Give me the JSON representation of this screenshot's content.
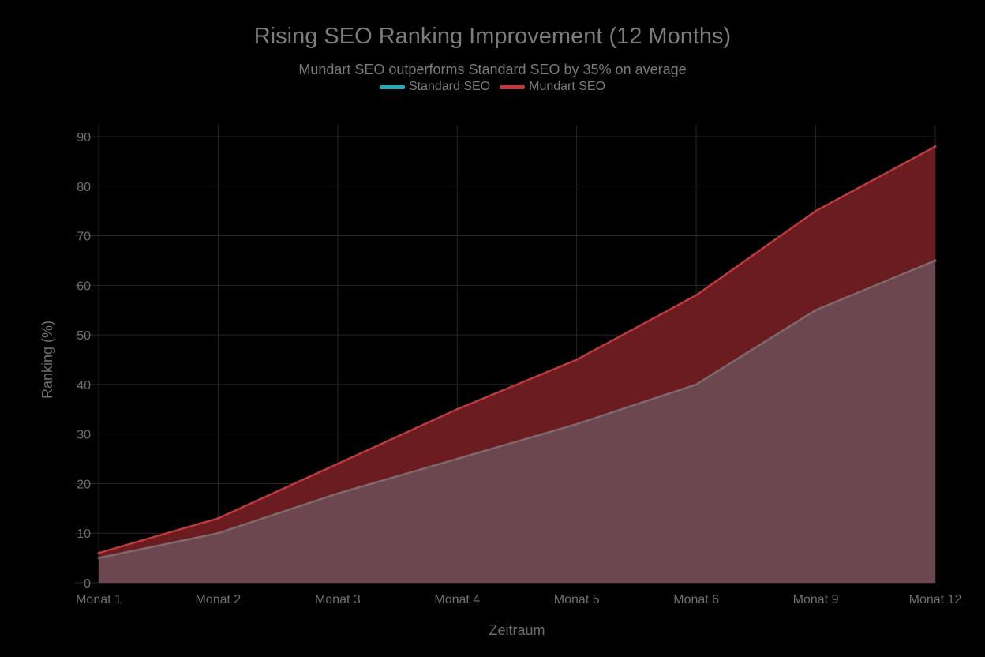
{
  "chart_data": {
    "type": "area",
    "title": "Rising SEO Ranking Improvement (12 Months)",
    "subtitle": "Mundart SEO outperforms Standard SEO by 35% on average",
    "xlabel": "Zeitraum",
    "ylabel": "Ranking (%)",
    "categories": [
      "Monat 1",
      "Monat 2",
      "Monat 3",
      "Monat 4",
      "Monat 5",
      "Monat 6",
      "Monat 9",
      "Monat 12"
    ],
    "ylim": [
      0,
      90
    ],
    "yticks": [
      0,
      10,
      20,
      30,
      40,
      50,
      60,
      70,
      80,
      90
    ],
    "grid": true,
    "legend_position": "top-center",
    "series": [
      {
        "name": "Standard SEO",
        "values": [
          5,
          10,
          18,
          25,
          32,
          40,
          55,
          65
        ],
        "legend_color": "#2aa8b8",
        "fill_color": "#6e4a52",
        "line_color": "#7d6a6e"
      },
      {
        "name": "Mundart SEO",
        "values": [
          6,
          13,
          24,
          35,
          45,
          58,
          75,
          88
        ],
        "legend_color": "#c0393b",
        "fill_color": "#6b1c20",
        "line_color": "#c0393b"
      }
    ]
  }
}
